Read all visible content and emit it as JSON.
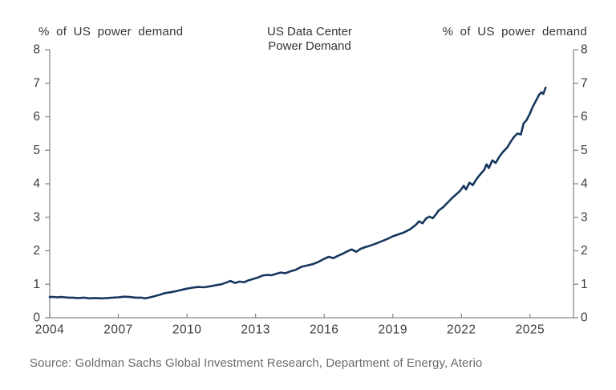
{
  "chart": {
    "title": "US Data Center\nPower Demand",
    "left_axis_title": "% of US power demand",
    "right_axis_title": "% of US power demand",
    "source": "Source: Goldman Sachs Global Investment Research, Department of Energy, Aterio"
  },
  "chart_data": {
    "type": "line",
    "title": "US Data Center Power Demand",
    "xlabel": "",
    "ylabel_left": "% of US power demand",
    "ylabel_right": "% of US power demand",
    "x_ticks": [
      2004,
      2007,
      2010,
      2013,
      2016,
      2019,
      2022,
      2025
    ],
    "y_ticks": [
      0,
      1,
      2,
      3,
      4,
      5,
      6,
      7,
      8
    ],
    "xlim": [
      2004,
      2026.9
    ],
    "ylim": [
      0,
      8
    ],
    "grid": false,
    "legend": "none",
    "line_color": "#17375e",
    "axis_color": "#8a8a8e",
    "tick_label_color": "#3b3b42",
    "series": [
      {
        "name": "US data center power demand (% of US power demand)",
        "x": [
          2004.0,
          2004.17,
          2004.33,
          2004.5,
          2004.67,
          2004.83,
          2005.0,
          2005.25,
          2005.5,
          2005.75,
          2006.0,
          2006.25,
          2006.5,
          2006.75,
          2007.0,
          2007.25,
          2007.5,
          2007.75,
          2008.0,
          2008.17,
          2008.33,
          2008.5,
          2008.67,
          2008.83,
          2009.0,
          2009.25,
          2009.5,
          2009.75,
          2010.0,
          2010.25,
          2010.5,
          2010.75,
          2011.0,
          2011.25,
          2011.5,
          2011.75,
          2011.9,
          2012.1,
          2012.3,
          2012.5,
          2012.7,
          2012.9,
          2013.1,
          2013.3,
          2013.5,
          2013.7,
          2013.9,
          2014.1,
          2014.3,
          2014.5,
          2014.75,
          2015.0,
          2015.25,
          2015.5,
          2015.75,
          2016.0,
          2016.2,
          2016.4,
          2016.6,
          2016.8,
          2017.0,
          2017.2,
          2017.4,
          2017.6,
          2017.8,
          2018.0,
          2018.25,
          2018.5,
          2018.75,
          2019.0,
          2019.25,
          2019.5,
          2019.75,
          2020.0,
          2020.15,
          2020.3,
          2020.45,
          2020.6,
          2020.75,
          2020.9,
          2021.0,
          2021.2,
          2021.4,
          2021.6,
          2021.75,
          2021.9,
          2022.0,
          2022.1,
          2022.2,
          2022.35,
          2022.5,
          2022.65,
          2022.8,
          2023.0,
          2023.1,
          2023.2,
          2023.35,
          2023.5,
          2023.65,
          2023.8,
          2024.0,
          2024.15,
          2024.3,
          2024.45,
          2024.6,
          2024.72,
          2024.85,
          2025.0,
          2025.1,
          2025.2,
          2025.3,
          2025.4,
          2025.5,
          2025.58,
          2025.68
        ],
        "y": [
          0.62,
          0.62,
          0.61,
          0.62,
          0.61,
          0.6,
          0.6,
          0.59,
          0.6,
          0.58,
          0.59,
          0.58,
          0.59,
          0.6,
          0.61,
          0.63,
          0.62,
          0.6,
          0.6,
          0.58,
          0.6,
          0.63,
          0.66,
          0.69,
          0.73,
          0.76,
          0.79,
          0.83,
          0.87,
          0.9,
          0.92,
          0.91,
          0.94,
          0.97,
          1.0,
          1.06,
          1.1,
          1.04,
          1.08,
          1.06,
          1.12,
          1.16,
          1.2,
          1.26,
          1.28,
          1.27,
          1.31,
          1.35,
          1.33,
          1.38,
          1.43,
          1.52,
          1.56,
          1.6,
          1.67,
          1.76,
          1.82,
          1.78,
          1.85,
          1.91,
          1.98,
          2.04,
          1.97,
          2.06,
          2.11,
          2.15,
          2.21,
          2.28,
          2.35,
          2.43,
          2.49,
          2.55,
          2.64,
          2.77,
          2.88,
          2.82,
          2.96,
          3.02,
          2.97,
          3.1,
          3.2,
          3.3,
          3.44,
          3.58,
          3.67,
          3.76,
          3.84,
          3.94,
          3.83,
          4.03,
          3.96,
          4.13,
          4.26,
          4.42,
          4.58,
          4.47,
          4.7,
          4.62,
          4.8,
          4.94,
          5.08,
          5.25,
          5.4,
          5.5,
          5.47,
          5.8,
          5.9,
          6.1,
          6.27,
          6.4,
          6.53,
          6.66,
          6.73,
          6.68,
          6.87
        ]
      }
    ]
  }
}
